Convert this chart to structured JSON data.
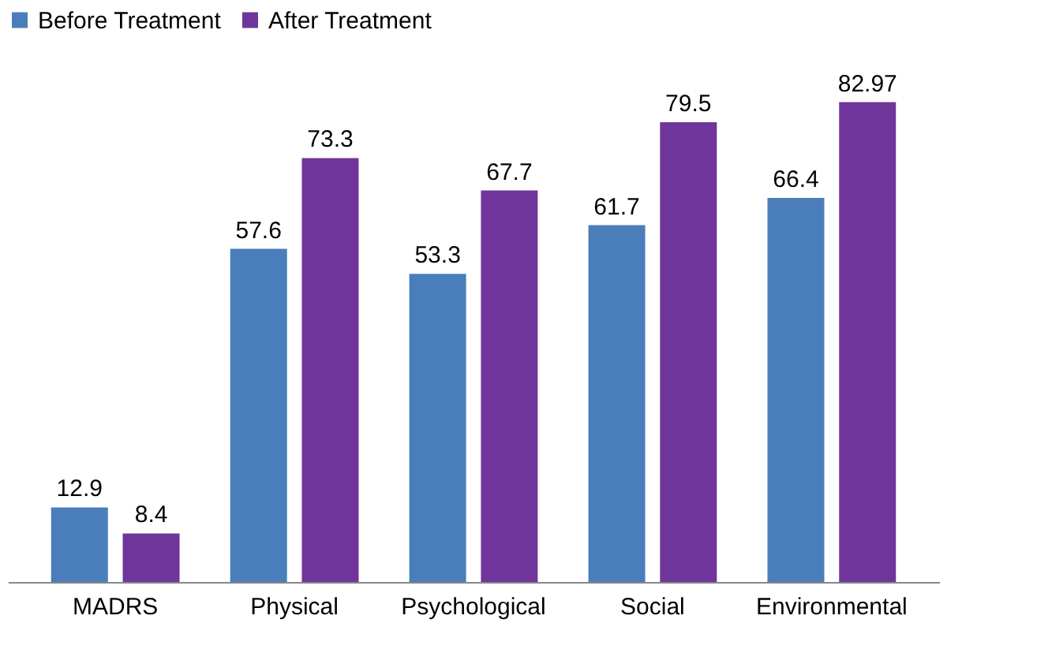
{
  "chart_data": {
    "type": "bar",
    "categories": [
      "MADRS",
      "Physical",
      "Psychological",
      "Social",
      "Environmental"
    ],
    "series": [
      {
        "name": "Before Treatment",
        "color": "#4a7ebb",
        "values": [
          12.9,
          57.6,
          53.3,
          61.7,
          66.4
        ]
      },
      {
        "name": "After Treatment",
        "color": "#70359a",
        "values": [
          8.4,
          73.3,
          67.7,
          79.5,
          82.97
        ]
      }
    ],
    "data_labels": true,
    "legend": "top",
    "grid": false
  }
}
